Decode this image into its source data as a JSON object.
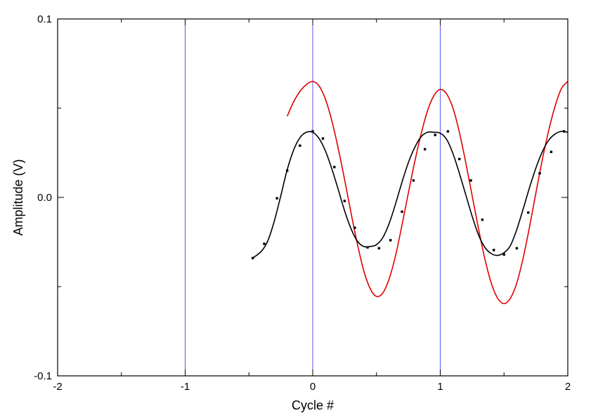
{
  "chart_data": {
    "type": "line",
    "xlabel": "Cycle #",
    "ylabel": "Amplitude (V)",
    "xlim": [
      -2,
      2
    ],
    "ylim": [
      -0.1,
      0.1
    ],
    "x_ticks": [
      {
        "value": -2,
        "label": "-2"
      },
      {
        "value": -1,
        "label": "-1"
      },
      {
        "value": 0,
        "label": "0"
      },
      {
        "value": 1,
        "label": "1"
      },
      {
        "value": 2,
        "label": "2"
      }
    ],
    "y_ticks": [
      {
        "value": -0.1,
        "label": "-0.1"
      },
      {
        "value": 0,
        "label": "0.0"
      },
      {
        "value": 0.1,
        "label": "0.1"
      }
    ],
    "x_minor_ticks": [
      -1.5,
      -0.5,
      0.5,
      1.5
    ],
    "y_minor_ticks": [
      -0.05,
      0.05
    ],
    "vertical_reference_lines": [
      -1,
      0,
      1
    ],
    "reference_line_color": "#5555ee",
    "grid": false,
    "legend": "none",
    "series": [
      {
        "style": "fit-line",
        "color": "#e00000",
        "x": [
          -0.2,
          -0.15,
          -0.1,
          -0.05,
          0,
          0.05,
          0.1,
          0.15,
          0.2,
          0.25,
          0.3,
          0.35,
          0.4,
          0.45,
          0.5,
          0.55,
          0.6,
          0.65,
          0.7,
          0.75,
          0.8,
          0.85,
          0.9,
          0.95,
          1,
          1.05,
          1.1,
          1.15,
          1.2,
          1.25,
          1.3,
          1.35,
          1.4,
          1.45,
          1.5,
          1.55,
          1.6,
          1.65,
          1.7,
          1.75,
          1.8,
          1.85,
          1.9,
          1.95,
          2
        ],
        "y": [
          0.0455,
          0.0535,
          0.0594,
          0.0632,
          0.065,
          0.0625,
          0.055,
          0.043,
          0.0275,
          0.01,
          -0.0085,
          -0.026,
          -0.041,
          -0.051,
          -0.0555,
          -0.0535,
          -0.0455,
          -0.0325,
          -0.0155,
          0.0025,
          0.02,
          0.0355,
          0.0485,
          0.057,
          0.0605,
          0.058,
          0.05,
          0.0365,
          0.0195,
          0.001,
          -0.0175,
          -0.0345,
          -0.048,
          -0.0565,
          -0.0595,
          -0.0565,
          -0.048,
          -0.034,
          -0.0165,
          0.0025,
          0.021,
          0.0375,
          0.051,
          0.061,
          0.065
        ]
      },
      {
        "style": "fit-line",
        "color": "#000000",
        "x": [
          -0.47,
          -0.4,
          -0.35,
          -0.3,
          -0.25,
          -0.2,
          -0.15,
          -0.1,
          -0.05,
          0,
          0.05,
          0.1,
          0.15,
          0.2,
          0.25,
          0.3,
          0.35,
          0.4,
          0.45,
          0.5,
          0.55,
          0.6,
          0.65,
          0.7,
          0.75,
          0.8,
          0.85,
          0.9,
          0.95,
          1,
          1.05,
          1.1,
          1.15,
          1.2,
          1.25,
          1.3,
          1.35,
          1.4,
          1.45,
          1.5,
          1.55,
          1.6,
          1.65,
          1.7,
          1.75,
          1.8,
          1.85,
          1.9,
          1.95,
          2
        ],
        "y": [
          -0.034,
          -0.03,
          -0.024,
          -0.013,
          0.001,
          0.0155,
          0.0265,
          0.0335,
          0.0365,
          0.0365,
          0.033,
          0.026,
          0.016,
          0.0045,
          -0.0075,
          -0.0175,
          -0.0245,
          -0.0275,
          -0.0275,
          -0.0265,
          -0.0225,
          -0.0145,
          -0.0035,
          0.0085,
          0.0195,
          0.028,
          0.034,
          0.0365,
          0.0365,
          0.036,
          0.0325,
          0.0245,
          0.0135,
          0.0015,
          -0.0105,
          -0.021,
          -0.028,
          -0.0315,
          -0.0325,
          -0.031,
          -0.027,
          -0.018,
          -0.0065,
          0.0055,
          0.0165,
          0.0255,
          0.032,
          0.0355,
          0.037,
          0.0365
        ]
      },
      {
        "style": "markers",
        "color": "#000000",
        "x": [
          -0.47,
          -0.38,
          -0.28,
          -0.2,
          -0.1,
          0,
          0.08,
          0.17,
          0.25,
          0.33,
          0.43,
          0.52,
          0.61,
          0.7,
          0.79,
          0.88,
          0.96,
          1.06,
          1.15,
          1.24,
          1.33,
          1.42,
          1.5,
          1.6,
          1.69,
          1.78,
          1.87,
          1.97
        ],
        "y": [
          -0.034,
          -0.026,
          -0.0005,
          0.015,
          0.029,
          0.037,
          0.033,
          0.017,
          -0.002,
          -0.017,
          -0.028,
          -0.0285,
          -0.024,
          -0.008,
          0.0095,
          0.027,
          0.035,
          0.037,
          0.0215,
          0.0095,
          -0.0125,
          -0.0295,
          -0.032,
          -0.0285,
          -0.0085,
          0.0135,
          0.0255,
          0.037
        ]
      }
    ]
  }
}
